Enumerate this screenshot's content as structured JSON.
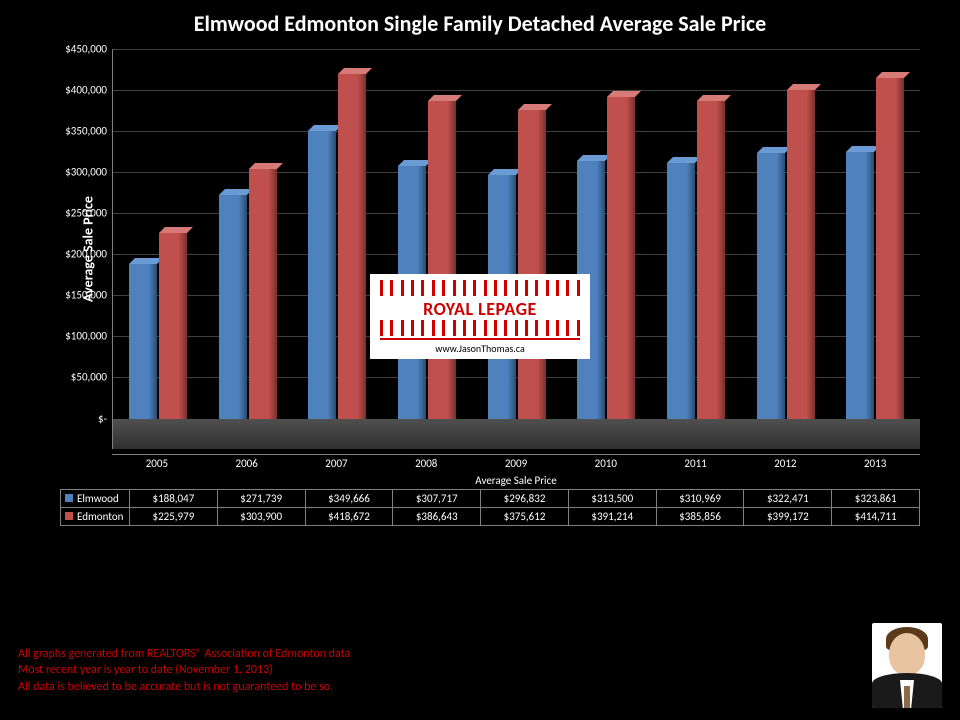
{
  "title": "Elmwood Edmonton Single Family Detached Average Sale Price",
  "y_axis_label": "Average Sale Price",
  "x_axis_label": "Average Sale Price",
  "chart": {
    "type": "bar",
    "years": [
      "2005",
      "2006",
      "2007",
      "2008",
      "2009",
      "2010",
      "2011",
      "2012",
      "2013"
    ],
    "series": [
      {
        "name": "Elmwood",
        "color": "#4f81bd",
        "values": [
          188047,
          271739,
          349666,
          307717,
          296832,
          313500,
          310969,
          322471,
          323861
        ]
      },
      {
        "name": "Edmonton",
        "color": "#c0504d",
        "values": [
          225979,
          303900,
          418672,
          386643,
          375612,
          391214,
          385856,
          399172,
          414711
        ]
      }
    ],
    "ymax": 450000,
    "ytick_step": 50000,
    "grid_color": "#404040",
    "background_color": "#000000"
  },
  "y_ticks": [
    "$-",
    "$50,000",
    "$100,000",
    "$150,000",
    "$200,000",
    "$250,000",
    "$300,000",
    "$350,000",
    "$400,000",
    "$450,000"
  ],
  "data_table": {
    "rows": [
      {
        "label": "Elmwood",
        "color": "#4f81bd",
        "cells": [
          "$188,047",
          "$271,739",
          "$349,666",
          "$307,717",
          "$296,832",
          "$313,500",
          "$310,969",
          "$322,471",
          "$323,861"
        ]
      },
      {
        "label": "Edmonton",
        "color": "#c0504d",
        "cells": [
          "$225,979",
          "$303,900",
          "$418,672",
          "$386,643",
          "$375,612",
          "$391,214",
          "$385,856",
          "$399,172",
          "$414,711"
        ]
      }
    ]
  },
  "watermark": {
    "brand": "ROYAL LEPAGE",
    "url": "www.JasonThomas.ca"
  },
  "footer": {
    "line1": "All graphs generated from REALTORS® Association of Edmonton data",
    "line2": "Most recent year is year to date (November 1, 2013)",
    "line3": "All data is believed to be accurate but is not guaranteed to be so."
  }
}
